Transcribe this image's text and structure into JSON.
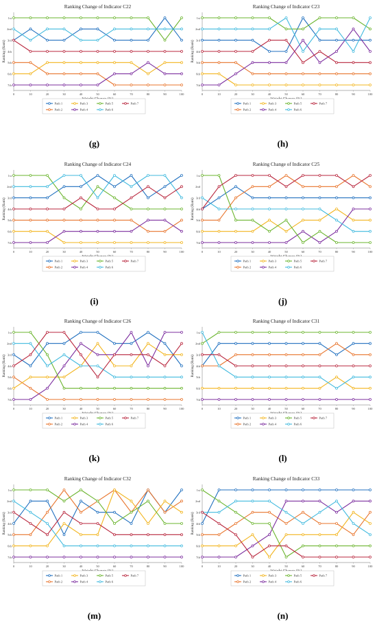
{
  "series_colors": [
    "#1f6fbf",
    "#e8732a",
    "#f2b41c",
    "#7b2c9e",
    "#6ab42d",
    "#3fb9de",
    "#b8253c"
  ],
  "series_names": [
    "Path 1",
    "Path 2",
    "Path 3",
    "Path 4",
    "Path 5",
    "Path 6",
    "Path 7"
  ],
  "chart_data": [
    {
      "type": "line",
      "letter": "(g)",
      "title": "Ranking Change of Indicator C22",
      "xlabel": "Weight Change (%)",
      "ylabel": "Ranking (Rank)",
      "x": [
        0,
        10,
        20,
        30,
        40,
        50,
        60,
        70,
        80,
        90,
        100
      ],
      "xlim": [
        0,
        100
      ],
      "ylim": [
        1,
        7
      ],
      "y_inverted": true,
      "yticks": [
        "1st",
        "2nd",
        "3rd",
        "4th",
        "5th",
        "6th",
        "7th"
      ],
      "legend": "bottom",
      "series": [
        {
          "name": "Path 1",
          "values": [
            3,
            2,
            3,
            3,
            2,
            2,
            3,
            3,
            3,
            1,
            3
          ]
        },
        {
          "name": "Path 2",
          "values": [
            5,
            5,
            6,
            6,
            6,
            6,
            7,
            7,
            7,
            7,
            7
          ]
        },
        {
          "name": "Path 3",
          "values": [
            6,
            6,
            5,
            5,
            5,
            5,
            5,
            5,
            6,
            5,
            5
          ]
        },
        {
          "name": "Path 4",
          "values": [
            7,
            7,
            7,
            7,
            7,
            7,
            6,
            6,
            5,
            6,
            6
          ]
        },
        {
          "name": "Path 5",
          "values": [
            1,
            1,
            1,
            1,
            1,
            1,
            1,
            1,
            1,
            3,
            1
          ]
        },
        {
          "name": "Path 6",
          "values": [
            2,
            3,
            2,
            2,
            3,
            3,
            2,
            2,
            2,
            2,
            2
          ]
        },
        {
          "name": "Path 7",
          "values": [
            3,
            4,
            4,
            4,
            4,
            4,
            4,
            4,
            4,
            4,
            4
          ]
        }
      ]
    },
    {
      "type": "line",
      "letter": "(h)",
      "title": "Ranking Change of Indicator C23",
      "xlabel": "Weight Change (%)",
      "ylabel": "Ranking (Rank)",
      "x": [
        0,
        10,
        20,
        30,
        40,
        50,
        60,
        70,
        80,
        90,
        100
      ],
      "xlim": [
        0,
        100
      ],
      "ylim": [
        1,
        7
      ],
      "y_inverted": true,
      "yticks": [
        "1st",
        "2nd",
        "3rd",
        "4th",
        "5th",
        "6th",
        "7th"
      ],
      "legend": "bottom",
      "series": [
        {
          "name": "Path 1",
          "values": [
            3,
            3,
            3,
            3,
            4,
            4,
            1,
            3,
            3,
            3,
            3
          ]
        },
        {
          "name": "Path 2",
          "values": [
            5,
            5,
            5,
            6,
            6,
            6,
            6,
            6,
            6,
            6,
            6
          ]
        },
        {
          "name": "Path 3",
          "values": [
            6,
            6,
            7,
            7,
            7,
            7,
            7,
            7,
            7,
            7,
            7
          ]
        },
        {
          "name": "Path 4",
          "values": [
            7,
            7,
            6,
            5,
            5,
            5,
            3,
            5,
            4,
            2,
            4
          ]
        },
        {
          "name": "Path 5",
          "values": [
            1,
            1,
            1,
            1,
            1,
            2,
            2,
            1,
            1,
            1,
            2
          ]
        },
        {
          "name": "Path 6",
          "values": [
            2,
            2,
            2,
            2,
            2,
            1,
            4,
            2,
            2,
            4,
            1
          ]
        },
        {
          "name": "Path 7",
          "values": [
            4,
            4,
            4,
            4,
            3,
            3,
            5,
            4,
            5,
            5,
            5
          ]
        }
      ]
    },
    {
      "type": "line",
      "letter": "(i)",
      "title": "Ranking Change of Indicator C24",
      "xlabel": "Weight Change (%)",
      "ylabel": "Ranking (Rank)",
      "x": [
        0,
        10,
        20,
        30,
        40,
        50,
        60,
        70,
        80,
        90,
        100
      ],
      "xlim": [
        0,
        100
      ],
      "ylim": [
        1,
        7
      ],
      "y_inverted": true,
      "yticks": [
        "1st",
        "2nd",
        "3rd",
        "4th",
        "5th",
        "6th",
        "7th"
      ],
      "legend": "bottom",
      "series": [
        {
          "name": "Path 1",
          "values": [
            3,
            3,
            3,
            2,
            2,
            1,
            2,
            1,
            3,
            2,
            1
          ]
        },
        {
          "name": "Path 2",
          "values": [
            5,
            5,
            5,
            5,
            5,
            5,
            5,
            5,
            6,
            6,
            5
          ]
        },
        {
          "name": "Path 3",
          "values": [
            6,
            6,
            6,
            7,
            7,
            7,
            7,
            7,
            7,
            7,
            7
          ]
        },
        {
          "name": "Path 4",
          "values": [
            7,
            7,
            7,
            6,
            6,
            6,
            6,
            6,
            5,
            5,
            6
          ]
        },
        {
          "name": "Path 5",
          "values": [
            1,
            1,
            1,
            3,
            4,
            2,
            3,
            4,
            4,
            4,
            4
          ]
        },
        {
          "name": "Path 6",
          "values": [
            2,
            2,
            2,
            1,
            1,
            3,
            1,
            2,
            1,
            1,
            3
          ]
        },
        {
          "name": "Path 7",
          "values": [
            4,
            4,
            4,
            4,
            3,
            4,
            4,
            3,
            2,
            3,
            2
          ]
        }
      ]
    },
    {
      "type": "line",
      "letter": "(j)",
      "title": "Ranking Change of Indicator C25",
      "xlabel": "Weight Change (%)",
      "ylabel": "Ranking (Rank)",
      "x": [
        0,
        10,
        20,
        30,
        40,
        50,
        60,
        70,
        80,
        90,
        100
      ],
      "xlim": [
        0,
        100
      ],
      "ylim": [
        1,
        7
      ],
      "y_inverted": true,
      "yticks": [
        "1st",
        "2nd",
        "3rd",
        "4th",
        "5th",
        "6th",
        "7th"
      ],
      "legend": "bottom",
      "series": [
        {
          "name": "Path 1",
          "values": [
            4,
            3,
            2,
            3,
            3,
            3,
            3,
            3,
            3,
            3,
            3
          ]
        },
        {
          "name": "Path 2",
          "values": [
            5,
            5,
            3,
            2,
            2,
            1,
            2,
            2,
            2,
            1,
            2
          ]
        },
        {
          "name": "Path 3",
          "values": [
            6,
            6,
            6,
            6,
            5,
            6,
            5,
            5,
            4,
            5,
            5
          ]
        },
        {
          "name": "Path 4",
          "values": [
            7,
            7,
            7,
            7,
            7,
            7,
            6,
            7,
            6,
            4,
            4
          ]
        },
        {
          "name": "Path 5",
          "values": [
            1,
            1,
            5,
            5,
            6,
            5,
            7,
            6,
            7,
            7,
            7
          ]
        },
        {
          "name": "Path 6",
          "values": [
            3,
            4,
            4,
            4,
            4,
            4,
            4,
            4,
            5,
            6,
            6
          ]
        },
        {
          "name": "Path 7",
          "values": [
            4,
            2,
            1,
            1,
            1,
            2,
            1,
            1,
            1,
            2,
            1
          ]
        }
      ]
    },
    {
      "type": "line",
      "letter": "(k)",
      "title": "Ranking Change of Indicator C26",
      "xlabel": "Weight Change (%)",
      "ylabel": "Ranking (Rank)",
      "x": [
        0,
        10,
        20,
        30,
        40,
        50,
        60,
        70,
        80,
        90,
        100
      ],
      "xlim": [
        0,
        100
      ],
      "ylim": [
        1,
        7
      ],
      "y_inverted": true,
      "yticks": [
        "1st",
        "2nd",
        "3rd",
        "4th",
        "5th",
        "6th",
        "7th"
      ],
      "legend": "bottom",
      "series": [
        {
          "name": "Path 1",
          "values": [
            3,
            4,
            2,
            2,
            1,
            1,
            2,
            2,
            1,
            2,
            4
          ]
        },
        {
          "name": "Path 2",
          "values": [
            5,
            6,
            7,
            7,
            7,
            7,
            7,
            7,
            7,
            7,
            7
          ]
        },
        {
          "name": "Path 3",
          "values": [
            6,
            5,
            5,
            5,
            4,
            2,
            4,
            4,
            2,
            3,
            3
          ]
        },
        {
          "name": "Path 4",
          "values": [
            7,
            7,
            6,
            4,
            2,
            3,
            3,
            1,
            4,
            1,
            1
          ]
        },
        {
          "name": "Path 5",
          "values": [
            1,
            1,
            3,
            6,
            6,
            6,
            6,
            6,
            6,
            6,
            6
          ]
        },
        {
          "name": "Path 6",
          "values": [
            2,
            2,
            4,
            3,
            4,
            4,
            5,
            5,
            5,
            5,
            5
          ]
        },
        {
          "name": "Path 7",
          "values": [
            4,
            3,
            1,
            1,
            3,
            5,
            3,
            3,
            3,
            4,
            2
          ]
        }
      ]
    },
    {
      "type": "line",
      "letter": "(l)",
      "title": "Ranking Change of Indicator C31",
      "xlabel": "Weight Change (%)",
      "ylabel": "Ranking (Rank)",
      "x": [
        0,
        10,
        20,
        30,
        40,
        50,
        60,
        70,
        80,
        90,
        100
      ],
      "xlim": [
        0,
        100
      ],
      "ylim": [
        1,
        7
      ],
      "y_inverted": true,
      "yticks": [
        "1st",
        "2nd",
        "3rd",
        "4th",
        "5th",
        "6th",
        "7th"
      ],
      "legend": "bottom",
      "series": [
        {
          "name": "Path 1",
          "values": [
            4,
            2,
            2,
            2,
            2,
            2,
            2,
            2,
            3,
            2,
            2
          ]
        },
        {
          "name": "Path 2",
          "values": [
            4,
            4,
            3,
            3,
            3,
            3,
            3,
            3,
            2,
            3,
            3
          ]
        },
        {
          "name": "Path 3",
          "values": [
            6,
            6,
            6,
            6,
            6,
            6,
            6,
            6,
            5,
            6,
            6
          ]
        },
        {
          "name": "Path 4",
          "values": [
            7,
            7,
            7,
            7,
            7,
            7,
            7,
            7,
            7,
            7,
            7
          ]
        },
        {
          "name": "Path 5",
          "values": [
            2,
            1,
            1,
            1,
            1,
            1,
            1,
            1,
            1,
            1,
            1
          ]
        },
        {
          "name": "Path 6",
          "values": [
            1,
            4,
            5,
            5,
            5,
            5,
            5,
            5,
            6,
            5,
            5
          ]
        },
        {
          "name": "Path 7",
          "values": [
            3,
            3,
            4,
            4,
            4,
            4,
            4,
            4,
            4,
            4,
            4
          ]
        }
      ]
    },
    {
      "type": "line",
      "letter": "(m)",
      "title": "Ranking Change of Indicator C32",
      "xlabel": "Weight Change (%)",
      "ylabel": "Ranking (Rank)",
      "x": [
        0,
        10,
        20,
        30,
        40,
        50,
        60,
        70,
        80,
        90,
        100
      ],
      "xlim": [
        0,
        100
      ],
      "ylim": [
        1,
        7
      ],
      "y_inverted": true,
      "yticks": [
        "1st",
        "2nd",
        "3rd",
        "4th",
        "5th",
        "6th",
        "7th"
      ],
      "legend": "bottom",
      "series": [
        {
          "name": "Path 1",
          "values": [
            4,
            2,
            2,
            5,
            2,
            3,
            3,
            4,
            1,
            3,
            1
          ]
        },
        {
          "name": "Path 2",
          "values": [
            5,
            5,
            3,
            1,
            3,
            2,
            1,
            3,
            1,
            3,
            2
          ]
        },
        {
          "name": "Path 3",
          "values": [
            6,
            6,
            6,
            4,
            5,
            5,
            1,
            2,
            4,
            2,
            3
          ]
        },
        {
          "name": "Path 4",
          "values": [
            7,
            7,
            7,
            7,
            7,
            7,
            7,
            7,
            7,
            7,
            7
          ]
        },
        {
          "name": "Path 5",
          "values": [
            1,
            1,
            1,
            2,
            1,
            2,
            4,
            3,
            2,
            4,
            4
          ]
        },
        {
          "name": "Path 6",
          "values": [
            2,
            3,
            4,
            6,
            6,
            6,
            6,
            6,
            6,
            6,
            6
          ]
        },
        {
          "name": "Path 7",
          "values": [
            3,
            4,
            5,
            3,
            4,
            4,
            5,
            5,
            5,
            5,
            5
          ]
        }
      ]
    },
    {
      "type": "line",
      "letter": "(n)",
      "title": "Ranking Change of Indicator C33",
      "xlabel": "Weight Change (%)",
      "ylabel": "Ranking (Rank)",
      "x": [
        0,
        10,
        20,
        30,
        40,
        50,
        60,
        70,
        80,
        90,
        100
      ],
      "xlim": [
        0,
        100
      ],
      "ylim": [
        1,
        7
      ],
      "y_inverted": true,
      "yticks": [
        "1st",
        "2nd",
        "3rd",
        "4th",
        "5th",
        "6th",
        "7th"
      ],
      "legend": "bottom",
      "series": [
        {
          "name": "Path 1",
          "values": [
            4,
            1,
            1,
            1,
            1,
            1,
            1,
            1,
            1,
            1,
            1
          ]
        },
        {
          "name": "Path 2",
          "values": [
            5,
            5,
            4,
            3,
            3,
            4,
            3,
            4,
            4,
            5,
            3
          ]
        },
        {
          "name": "Path 3",
          "values": [
            6,
            6,
            6,
            5,
            7,
            5,
            5,
            5,
            5,
            3,
            4
          ]
        },
        {
          "name": "Path 4",
          "values": [
            7,
            7,
            7,
            6,
            5,
            2,
            2,
            2,
            3,
            2,
            2
          ]
        },
        {
          "name": "Path 5",
          "values": [
            1,
            2,
            3,
            4,
            4,
            7,
            6,
            6,
            6,
            6,
            6
          ]
        },
        {
          "name": "Path 6",
          "values": [
            3,
            3,
            2,
            2,
            2,
            3,
            4,
            3,
            2,
            4,
            5
          ]
        },
        {
          "name": "Path 7",
          "values": [
            3,
            4,
            5,
            7,
            6,
            6,
            7,
            7,
            7,
            7,
            7
          ]
        }
      ]
    }
  ]
}
